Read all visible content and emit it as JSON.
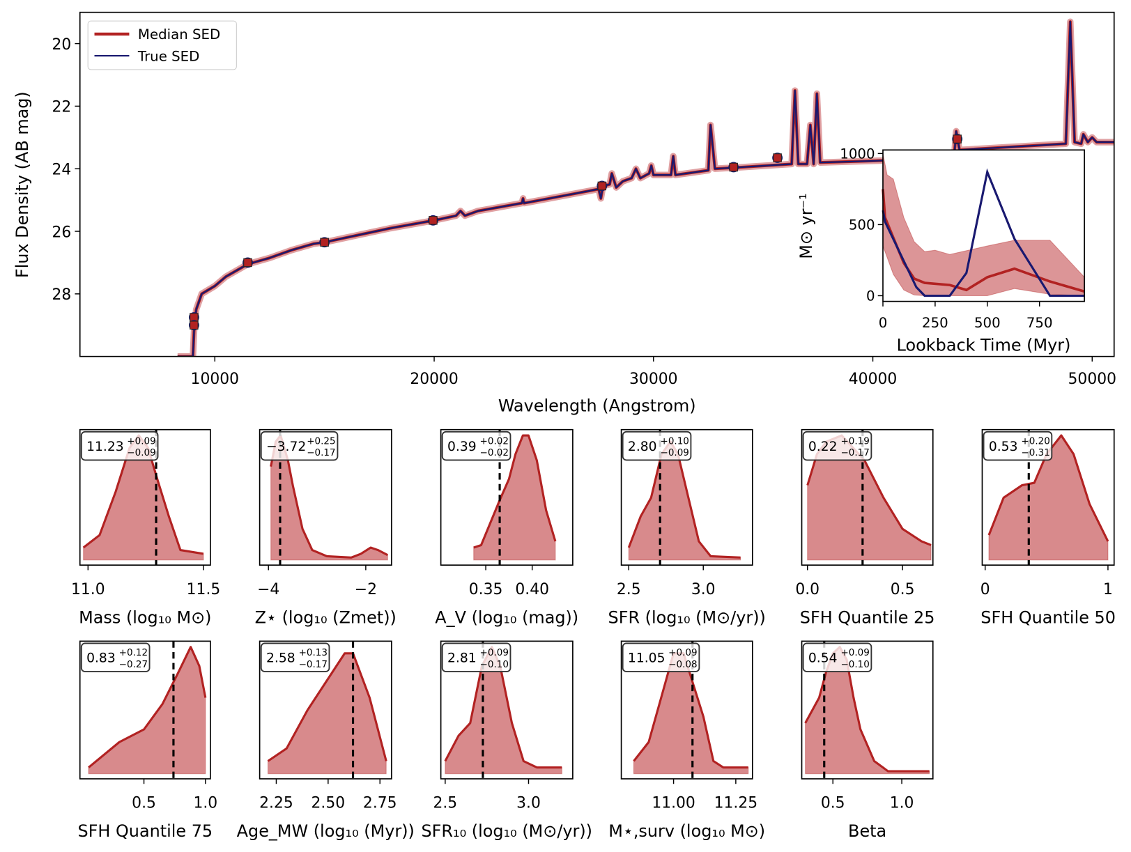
{
  "colors": {
    "median": "#b22222",
    "true": "#191970",
    "fill": "#d88a8c",
    "truth_line": "#000000"
  },
  "chart_data": [
    {
      "type": "line",
      "xlabel": "Wavelength (Angstrom)",
      "ylabel": "Flux Density (AB mag)",
      "xlim": [
        3850,
        51000
      ],
      "ylim": [
        30,
        19
      ],
      "y_inverted": true,
      "xticks": [
        10000,
        20000,
        30000,
        40000,
        50000
      ],
      "yticks": [
        20,
        22,
        24,
        26,
        28
      ],
      "legend": {
        "placement": "top-left",
        "entries": [
          "Median SED",
          "True SED"
        ]
      },
      "series": [
        {
          "name": "Median SED",
          "points": [
            [
              8300,
              30
            ],
            [
              9000,
              30
            ],
            [
              9050,
              29.2
            ],
            [
              9150,
              28.5
            ],
            [
              9400,
              28.0
            ],
            [
              10000,
              27.75
            ],
            [
              10500,
              27.45
            ],
            [
              11500,
              27.05
            ],
            [
              12500,
              26.85
            ],
            [
              13500,
              26.6
            ],
            [
              14500,
              26.4
            ],
            [
              15000,
              26.35
            ],
            [
              16000,
              26.2
            ],
            [
              18000,
              25.9
            ],
            [
              20000,
              25.65
            ],
            [
              21000,
              25.5
            ],
            [
              21200,
              25.35
            ],
            [
              21400,
              25.5
            ],
            [
              22000,
              25.35
            ],
            [
              24000,
              25.1
            ],
            [
              24050,
              24.95
            ],
            [
              24100,
              25.1
            ],
            [
              26000,
              24.85
            ],
            [
              27500,
              24.65
            ],
            [
              27600,
              24.95
            ],
            [
              27700,
              24.55
            ],
            [
              28000,
              24.5
            ],
            [
              28100,
              24.15
            ],
            [
              28300,
              24.6
            ],
            [
              28600,
              24.4
            ],
            [
              29000,
              24.3
            ],
            [
              29200,
              24.0
            ],
            [
              29400,
              24.3
            ],
            [
              29800,
              24.15
            ],
            [
              29900,
              23.9
            ],
            [
              30000,
              24.2
            ],
            [
              30800,
              24.2
            ],
            [
              30900,
              23.6
            ],
            [
              31000,
              24.2
            ],
            [
              32500,
              24.05
            ],
            [
              32600,
              22.6
            ],
            [
              32800,
              24.0
            ],
            [
              34000,
              23.95
            ],
            [
              36300,
              23.85
            ],
            [
              36450,
              21.5
            ],
            [
              36600,
              23.85
            ],
            [
              37000,
              23.85
            ],
            [
              37150,
              22.6
            ],
            [
              37300,
              23.85
            ],
            [
              37450,
              21.6
            ],
            [
              37600,
              23.8
            ],
            [
              40000,
              23.75
            ],
            [
              43700,
              23.65
            ],
            [
              43800,
              22.8
            ],
            [
              43950,
              23.4
            ],
            [
              48800,
              23.2
            ],
            [
              49000,
              19.3
            ],
            [
              49200,
              23.15
            ],
            [
              49500,
              23.2
            ],
            [
              49600,
              22.9
            ],
            [
              49800,
              23.15
            ],
            [
              50000,
              23.0
            ],
            [
              50200,
              23.15
            ],
            [
              51000,
              23.15
            ]
          ]
        },
        {
          "name": "True SED",
          "same_as": "Median SED"
        }
      ],
      "photometry": [
        [
          9050,
          28.75
        ],
        [
          9050,
          29.0
        ],
        [
          11500,
          27.0
        ],
        [
          15000,
          26.35
        ],
        [
          19950,
          25.65
        ],
        [
          27650,
          24.55
        ],
        [
          33650,
          23.95
        ],
        [
          35650,
          23.65
        ],
        [
          43850,
          23.05
        ]
      ]
    },
    {
      "type": "line",
      "inset": true,
      "xlabel": "Lookback Time (Myr)",
      "ylabel": "M⊙ yr⁻¹",
      "xlim": [
        0,
        965
      ],
      "ylim": [
        -40,
        1025
      ],
      "xticks": [
        0,
        250,
        500,
        750
      ],
      "yticks": [
        0,
        500,
        1000
      ],
      "true_sfh": [
        [
          0,
          600
        ],
        [
          10,
          520
        ],
        [
          160,
          60
        ],
        [
          200,
          0
        ],
        [
          320,
          0
        ],
        [
          400,
          160
        ],
        [
          500,
          870
        ],
        [
          630,
          400
        ],
        [
          800,
          0
        ],
        [
          965,
          0
        ]
      ],
      "median_sfh": [
        [
          0,
          750
        ],
        [
          10,
          550
        ],
        [
          100,
          230
        ],
        [
          150,
          120
        ],
        [
          200,
          90
        ],
        [
          320,
          75
        ],
        [
          400,
          40
        ],
        [
          500,
          130
        ],
        [
          630,
          190
        ],
        [
          800,
          100
        ],
        [
          965,
          30
        ]
      ],
      "band_upper": [
        [
          0,
          1000
        ],
        [
          20,
          850
        ],
        [
          50,
          820
        ],
        [
          100,
          550
        ],
        [
          150,
          380
        ],
        [
          200,
          310
        ],
        [
          250,
          320
        ],
        [
          320,
          290
        ],
        [
          500,
          350
        ],
        [
          630,
          390
        ],
        [
          800,
          390
        ],
        [
          965,
          130
        ]
      ],
      "band_lower": [
        [
          0,
          350
        ],
        [
          50,
          150
        ],
        [
          100,
          40
        ],
        [
          150,
          5
        ],
        [
          200,
          0
        ],
        [
          500,
          0
        ],
        [
          630,
          50
        ],
        [
          800,
          10
        ],
        [
          965,
          0
        ]
      ]
    },
    {
      "type": "area",
      "xlabel": "Mass (log₁₀ M⊙)",
      "xlim": [
        10.965,
        11.53
      ],
      "xticks": [
        11.0,
        11.5
      ],
      "ticklabels": [
        "11.0",
        "11.5"
      ],
      "truth": 11.295,
      "median": "11.23",
      "plus": "+0.09",
      "minus": "−0.09",
      "kde": [
        [
          10.98,
          0.1
        ],
        [
          11.05,
          0.2
        ],
        [
          11.12,
          0.55
        ],
        [
          11.18,
          0.9
        ],
        [
          11.22,
          1.0
        ],
        [
          11.26,
          0.9
        ],
        [
          11.3,
          0.65
        ],
        [
          11.35,
          0.35
        ],
        [
          11.4,
          0.08
        ],
        [
          11.5,
          0.05
        ]
      ]
    },
    {
      "type": "area",
      "xlabel": "Z⋆ (log₁₀ (Zmet))",
      "xlim": [
        -4.18,
        -1.47
      ],
      "xticks": [
        -4,
        -2
      ],
      "ticklabels": [
        "−4",
        "−2"
      ],
      "truth": -3.76,
      "median": "−3.72",
      "plus": "+0.25",
      "minus": "−0.17",
      "kde": [
        [
          -3.95,
          0.75
        ],
        [
          -3.85,
          0.95
        ],
        [
          -3.75,
          1.0
        ],
        [
          -3.6,
          0.8
        ],
        [
          -3.5,
          0.6
        ],
        [
          -3.3,
          0.25
        ],
        [
          -3.1,
          0.08
        ],
        [
          -2.8,
          0.03
        ],
        [
          -2.3,
          0.02
        ],
        [
          -2.1,
          0.05
        ],
        [
          -1.9,
          0.1
        ],
        [
          -1.75,
          0.08
        ],
        [
          -1.55,
          0.04
        ]
      ]
    },
    {
      "type": "area",
      "xlabel": "A_V (log₁₀ (mag))",
      "xlim": [
        0.3016,
        0.4437
      ],
      "xticks": [
        0.35,
        0.4
      ],
      "ticklabels": [
        "0.35",
        "0.40"
      ],
      "truth": 0.365,
      "median": "0.39",
      "plus": "+0.02",
      "minus": "−0.02",
      "kde": [
        [
          0.337,
          0.1
        ],
        [
          0.345,
          0.12
        ],
        [
          0.355,
          0.3
        ],
        [
          0.365,
          0.48
        ],
        [
          0.375,
          0.65
        ],
        [
          0.382,
          0.85
        ],
        [
          0.39,
          1.0
        ],
        [
          0.396,
          1.0
        ],
        [
          0.405,
          0.8
        ],
        [
          0.415,
          0.4
        ],
        [
          0.425,
          0.15
        ]
      ]
    },
    {
      "type": "area",
      "xlabel": "SFR (log₁₀ (M⊙/yr))",
      "xlim": [
        2.45,
        3.33
      ],
      "xticks": [
        2.5,
        3.0
      ],
      "ticklabels": [
        "2.5",
        "3.0"
      ],
      "truth": 2.71,
      "median": "2.80",
      "plus": "+0.10",
      "minus": "−0.09",
      "kde": [
        [
          2.5,
          0.1
        ],
        [
          2.58,
          0.35
        ],
        [
          2.65,
          0.5
        ],
        [
          2.72,
          0.85
        ],
        [
          2.78,
          0.95
        ],
        [
          2.83,
          0.85
        ],
        [
          2.9,
          0.5
        ],
        [
          2.97,
          0.15
        ],
        [
          3.05,
          0.03
        ],
        [
          3.25,
          0.02
        ]
      ]
    },
    {
      "type": "area",
      "xlabel": "SFH Quantile 25",
      "xlim": [
        -0.03,
        0.66
      ],
      "xticks": [
        0.0,
        0.5
      ],
      "ticklabels": [
        "0.0",
        "0.5"
      ],
      "truth": 0.29,
      "median": "0.22",
      "plus": "+0.19",
      "minus": "−0.17",
      "kde": [
        [
          0.0,
          0.6
        ],
        [
          0.05,
          0.85
        ],
        [
          0.1,
          0.95
        ],
        [
          0.18,
          1.0
        ],
        [
          0.3,
          0.8
        ],
        [
          0.4,
          0.5
        ],
        [
          0.5,
          0.25
        ],
        [
          0.6,
          0.15
        ],
        [
          0.65,
          0.12
        ]
      ]
    },
    {
      "type": "area",
      "xlabel": "SFH Quantile 50",
      "xlim": [
        -0.024,
        1.05
      ],
      "xticks": [
        0,
        1
      ],
      "ticklabels": [
        "0",
        "1"
      ],
      "truth": 0.355,
      "median": "0.53",
      "plus": "+0.20",
      "minus": "−0.31",
      "kde": [
        [
          0.03,
          0.2
        ],
        [
          0.15,
          0.5
        ],
        [
          0.3,
          0.6
        ],
        [
          0.4,
          0.62
        ],
        [
          0.5,
          0.85
        ],
        [
          0.62,
          1.0
        ],
        [
          0.72,
          0.85
        ],
        [
          0.85,
          0.45
        ],
        [
          1.0,
          0.15
        ]
      ]
    },
    {
      "type": "area",
      "xlabel": "SFH Quantile 75",
      "xlim": [
        -0.02,
        1.04
      ],
      "xticks": [
        0.5,
        1.0
      ],
      "ticklabels": [
        "0.5",
        "1.0"
      ],
      "truth": 0.74,
      "median": "0.83",
      "plus": "+0.12",
      "minus": "−0.27",
      "kde": [
        [
          0.05,
          0.05
        ],
        [
          0.3,
          0.25
        ],
        [
          0.5,
          0.35
        ],
        [
          0.65,
          0.55
        ],
        [
          0.78,
          0.8
        ],
        [
          0.88,
          1.0
        ],
        [
          0.95,
          0.85
        ],
        [
          1.0,
          0.6
        ]
      ]
    },
    {
      "type": "area",
      "xlabel": "Age_MW (log₁₀ (Myr))",
      "xlim": [
        2.17,
        2.806
      ],
      "xticks": [
        2.25,
        2.5,
        2.75
      ],
      "ticklabels": [
        "2.25",
        "2.50",
        "2.75"
      ],
      "truth": 2.62,
      "median": "2.58",
      "plus": "+0.13",
      "minus": "−0.17",
      "kde": [
        [
          2.21,
          0.1
        ],
        [
          2.3,
          0.2
        ],
        [
          2.4,
          0.5
        ],
        [
          2.5,
          0.75
        ],
        [
          2.58,
          0.95
        ],
        [
          2.62,
          0.95
        ],
        [
          2.7,
          0.6
        ],
        [
          2.78,
          0.1
        ]
      ]
    },
    {
      "type": "area",
      "xlabel": "SFR₁₀ (log₁₀ (M⊙/yr))",
      "xlim": [
        2.474,
        3.265
      ],
      "xticks": [
        2.5,
        3.0
      ],
      "ticklabels": [
        "2.5",
        "3.0"
      ],
      "truth": 2.726,
      "median": "2.81",
      "plus": "+0.09",
      "minus": "−0.10",
      "kde": [
        [
          2.5,
          0.1
        ],
        [
          2.58,
          0.3
        ],
        [
          2.65,
          0.4
        ],
        [
          2.72,
          0.85
        ],
        [
          2.78,
          1.0
        ],
        [
          2.83,
          0.85
        ],
        [
          2.9,
          0.4
        ],
        [
          2.97,
          0.1
        ],
        [
          3.05,
          0.05
        ],
        [
          3.2,
          0.05
        ]
      ]
    },
    {
      "type": "area",
      "xlabel": "M⋆,surv (log₁₀ M⊙)",
      "xlim": [
        10.79,
        11.317
      ],
      "xticks": [
        11.0,
        11.25
      ],
      "ticklabels": [
        "11.00",
        "11.25"
      ],
      "truth": 11.076,
      "median": "11.05",
      "plus": "+0.09",
      "minus": "−0.08",
      "kde": [
        [
          10.84,
          0.1
        ],
        [
          10.9,
          0.25
        ],
        [
          10.95,
          0.6
        ],
        [
          11.0,
          0.95
        ],
        [
          11.04,
          0.95
        ],
        [
          11.08,
          0.7
        ],
        [
          11.12,
          0.45
        ],
        [
          11.16,
          0.1
        ],
        [
          11.2,
          0.05
        ],
        [
          11.3,
          0.05
        ]
      ]
    },
    {
      "type": "area",
      "xlabel": "Beta",
      "xlim": [
        0.274,
        1.226
      ],
      "xticks": [
        0.5,
        1.0
      ],
      "ticklabels": [
        "0.5",
        "1.0"
      ],
      "truth": 0.437,
      "median": "0.54",
      "plus": "+0.09",
      "minus": "−0.10",
      "kde": [
        [
          0.3,
          0.4
        ],
        [
          0.4,
          0.6
        ],
        [
          0.45,
          0.8
        ],
        [
          0.5,
          0.95
        ],
        [
          0.55,
          1.0
        ],
        [
          0.6,
          0.9
        ],
        [
          0.65,
          0.6
        ],
        [
          0.7,
          0.35
        ],
        [
          0.8,
          0.1
        ],
        [
          0.9,
          0.02
        ],
        [
          1.2,
          0.02
        ]
      ]
    }
  ]
}
